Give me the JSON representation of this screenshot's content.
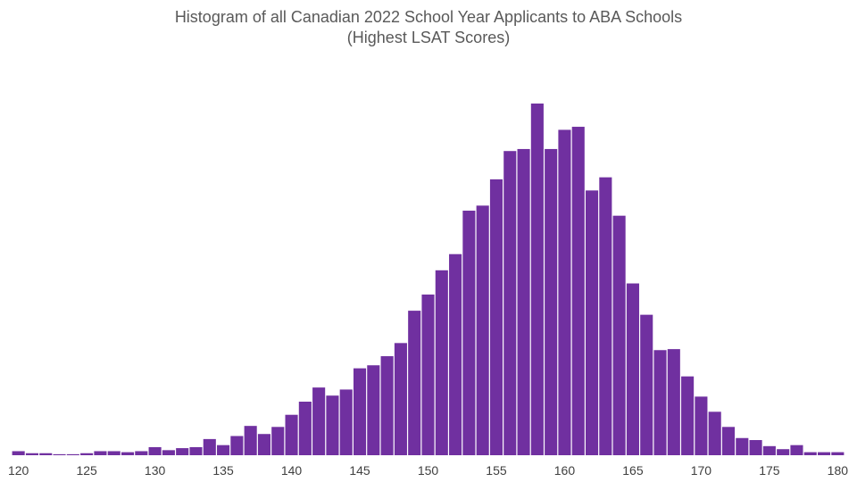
{
  "chart_data": {
    "type": "bar",
    "title": "Histogram of all Canadian 2022 School Year Applicants to ABA Schools",
    "subtitle": "(Highest LSAT Scores)",
    "xlabel": "",
    "ylabel": "",
    "x_range": [
      120,
      180
    ],
    "x_ticks": [
      120,
      125,
      130,
      135,
      140,
      145,
      150,
      155,
      160,
      165,
      170,
      175,
      180
    ],
    "grid": false,
    "legend": "none",
    "bar_color": "#7030A0",
    "x": [
      120,
      121,
      122,
      123,
      124,
      125,
      126,
      127,
      128,
      129,
      130,
      131,
      132,
      133,
      134,
      135,
      136,
      137,
      138,
      139,
      140,
      141,
      142,
      143,
      144,
      145,
      146,
      147,
      148,
      149,
      150,
      151,
      152,
      153,
      154,
      155,
      156,
      157,
      158,
      159,
      160,
      161,
      162,
      163,
      164,
      165,
      166,
      167,
      168,
      169,
      170,
      171,
      172,
      173,
      174,
      175,
      176,
      177,
      178,
      179,
      180
    ],
    "values": [
      4,
      2,
      2,
      1,
      1,
      2,
      4,
      4,
      3,
      4,
      8,
      5,
      7,
      8,
      16,
      10,
      19,
      29,
      21,
      28,
      40,
      53,
      67,
      59,
      65,
      86,
      89,
      98,
      111,
      143,
      159,
      183,
      199,
      242,
      247,
      273,
      301,
      303,
      348,
      303,
      322,
      325,
      262,
      275,
      237,
      170,
      139,
      104,
      105,
      78,
      58,
      43,
      28,
      17,
      15,
      9,
      6,
      10,
      3,
      3,
      3
    ],
    "ylim": [
      0,
      348
    ]
  }
}
